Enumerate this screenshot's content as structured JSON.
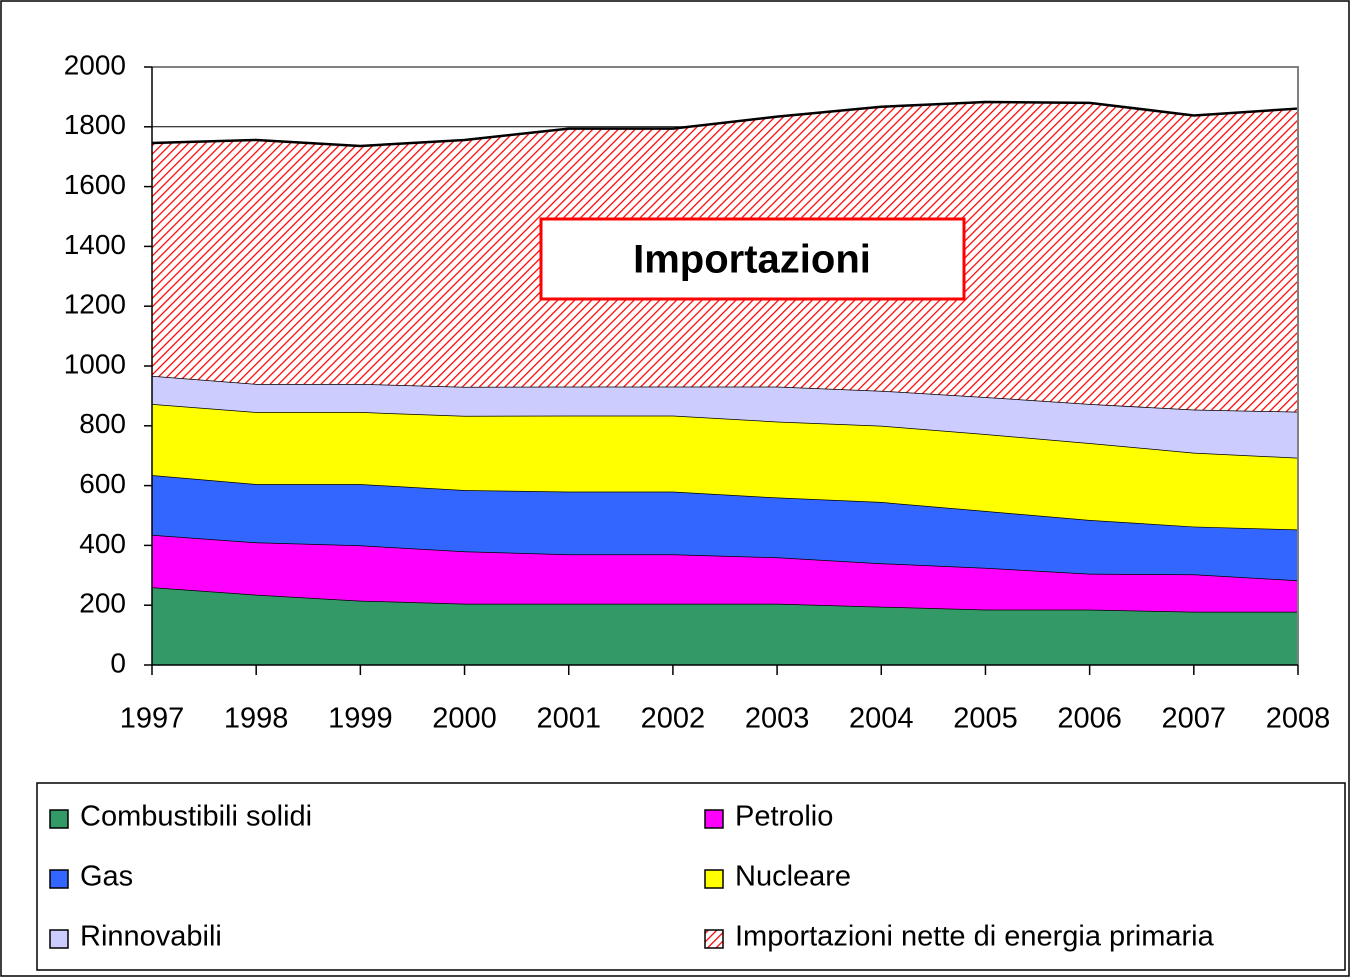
{
  "chart_data": {
    "type": "stacked_area",
    "categories": [
      "1997",
      "1998",
      "1999",
      "2000",
      "2001",
      "2002",
      "2003",
      "2004",
      "2005",
      "2006",
      "2007",
      "2008"
    ],
    "series": [
      {
        "name": "Combustibili solidi",
        "color": "#339966",
        "values": [
          260,
          235,
          215,
          205,
          205,
          205,
          205,
          195,
          185,
          185,
          178,
          178
        ]
      },
      {
        "name": "Petrolio",
        "color": "#ff00ff",
        "values": [
          175,
          175,
          185,
          175,
          165,
          165,
          155,
          145,
          140,
          120,
          125,
          105
        ]
      },
      {
        "name": "Gas",
        "color": "#3366ff",
        "values": [
          200,
          195,
          205,
          205,
          210,
          210,
          200,
          205,
          190,
          180,
          160,
          170
        ]
      },
      {
        "name": "Nucleare",
        "color": "#ffff00",
        "values": [
          238,
          241,
          241,
          248,
          254,
          254,
          254,
          255,
          257,
          257,
          247,
          240
        ]
      },
      {
        "name": "Rinnovabili",
        "color": "#ccccff",
        "values": [
          94,
          94,
          94,
          97,
          97,
          97,
          117,
          117,
          124,
          131,
          144,
          154
        ]
      },
      {
        "name": "Importazioni nette di energia primaria",
        "color": "#ff0000",
        "hatch": true,
        "values": [
          779,
          816,
          796,
          826,
          863,
          863,
          903,
          950,
          987,
          1007,
          984,
          1014
        ]
      }
    ],
    "annotation": "Importazioni",
    "ylim": [
      0,
      2000
    ],
    "yticks": [
      0,
      200,
      400,
      600,
      800,
      1000,
      1200,
      1400,
      1600,
      1800,
      2000
    ],
    "grid": true
  }
}
